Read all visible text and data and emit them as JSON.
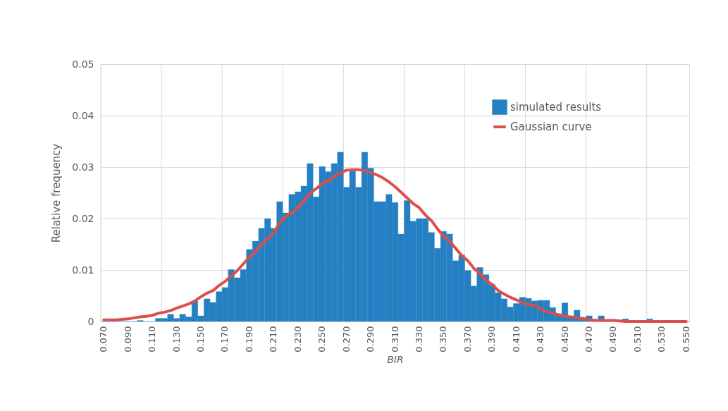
{
  "chart_data": {
    "type": "bar",
    "xlabel": "BIR",
    "ylabel": "Relative frequency",
    "categories": [
      "0.070",
      null,
      null,
      null,
      "0.090",
      null,
      null,
      null,
      "0.110",
      null,
      null,
      null,
      "0.130",
      null,
      null,
      null,
      "0.150",
      null,
      null,
      null,
      "0.170",
      null,
      null,
      null,
      "0.190",
      null,
      null,
      null,
      "0.210",
      null,
      null,
      null,
      "0.230",
      null,
      null,
      null,
      "0.250",
      null,
      null,
      null,
      "0.270",
      null,
      null,
      null,
      "0.290",
      null,
      null,
      null,
      "0.310",
      null,
      null,
      null,
      "0.330",
      null,
      null,
      null,
      "0.350",
      null,
      null,
      null,
      "0.370",
      null,
      null,
      null,
      "0.390",
      null,
      null,
      null,
      "0.410",
      null,
      null,
      null,
      "0.430",
      null,
      null,
      null,
      "0.450",
      null,
      null,
      null,
      "0.470",
      null,
      null,
      null,
      "0.490",
      null,
      null,
      null,
      "0.510",
      null,
      null,
      null,
      "0.530",
      null,
      null,
      null,
      "0.550"
    ],
    "series": [
      {
        "name": "simulated results",
        "color": "#2480c2",
        "values": [
          0,
          0,
          0,
          0,
          0,
          0,
          0.0002,
          0,
          0,
          0.0006,
          0.0006,
          0.0014,
          0.0006,
          0.0014,
          0.0009,
          0.004,
          0.0011,
          0.0044,
          0.0037,
          0.0058,
          0.0066,
          0.0101,
          0.0085,
          0.0101,
          0.014,
          0.0156,
          0.0181,
          0.02,
          0.0181,
          0.0233,
          0.0211,
          0.0247,
          0.0252,
          0.0263,
          0.0307,
          0.0242,
          0.0301,
          0.0291,
          0.0307,
          0.0329,
          0.0261,
          0.0292,
          0.0261,
          0.0329,
          0.0298,
          0.0233,
          0.0233,
          0.0247,
          0.0231,
          0.017,
          0.0235,
          0.0195,
          0.02,
          0.02,
          0.0173,
          0.0142,
          0.0175,
          0.017,
          0.0118,
          0.0129,
          0.0099,
          0.0069,
          0.0105,
          0.0091,
          0.0072,
          0.0056,
          0.0044,
          0.0028,
          0.0035,
          0.0047,
          0.0045,
          0.004,
          0.0041,
          0.0041,
          0.0027,
          0.0015,
          0.0036,
          0.001,
          0.0022,
          0.0007,
          0.0011,
          null,
          0.0011,
          null,
          null,
          null,
          0.0005,
          0,
          0,
          0,
          0.0005,
          0,
          0,
          0,
          0,
          0,
          0
        ]
      },
      {
        "name": "Gaussian curve",
        "type": "line",
        "color": "#dc4e4a",
        "values": [
          0.0003,
          0.0003,
          0.0003,
          0.0004,
          0.0005,
          0.0007,
          0.0009,
          0.001,
          0.0012,
          0.0016,
          0.0018,
          0.0021,
          0.0026,
          0.003,
          0.0034,
          0.004,
          0.0048,
          0.0055,
          0.006,
          0.007,
          0.0078,
          0.0088,
          0.0099,
          0.0112,
          0.0125,
          0.0136,
          0.015,
          0.0161,
          0.0172,
          0.0192,
          0.0204,
          0.0211,
          0.0222,
          0.0234,
          0.0249,
          0.0258,
          0.0268,
          0.0273,
          0.0282,
          0.0288,
          0.0294,
          0.0295,
          0.0295,
          0.0293,
          0.0289,
          0.0285,
          0.0279,
          0.0271,
          0.0262,
          0.0251,
          0.024,
          0.0229,
          0.0221,
          0.0207,
          0.0196,
          0.018,
          0.0165,
          0.0156,
          0.0142,
          0.0128,
          0.0118,
          0.0103,
          0.0093,
          0.008,
          0.0072,
          0.006,
          0.0053,
          0.0047,
          0.0042,
          0.0036,
          0.0033,
          0.0031,
          0.0024,
          0.0019,
          0.0016,
          0.0013,
          0.001,
          0.0009,
          0.0007,
          0.0006,
          0.0003,
          0.0002,
          0.0002,
          0.0002,
          0.0002,
          0.0001,
          0,
          0,
          0,
          0,
          0,
          0,
          0,
          0,
          0,
          0,
          0
        ]
      }
    ],
    "ylim": [
      0,
      0.05
    ],
    "yticks": [
      0,
      0.01,
      0.02,
      0.03,
      0.04,
      0.05
    ],
    "grid": true,
    "legend": "top right"
  }
}
